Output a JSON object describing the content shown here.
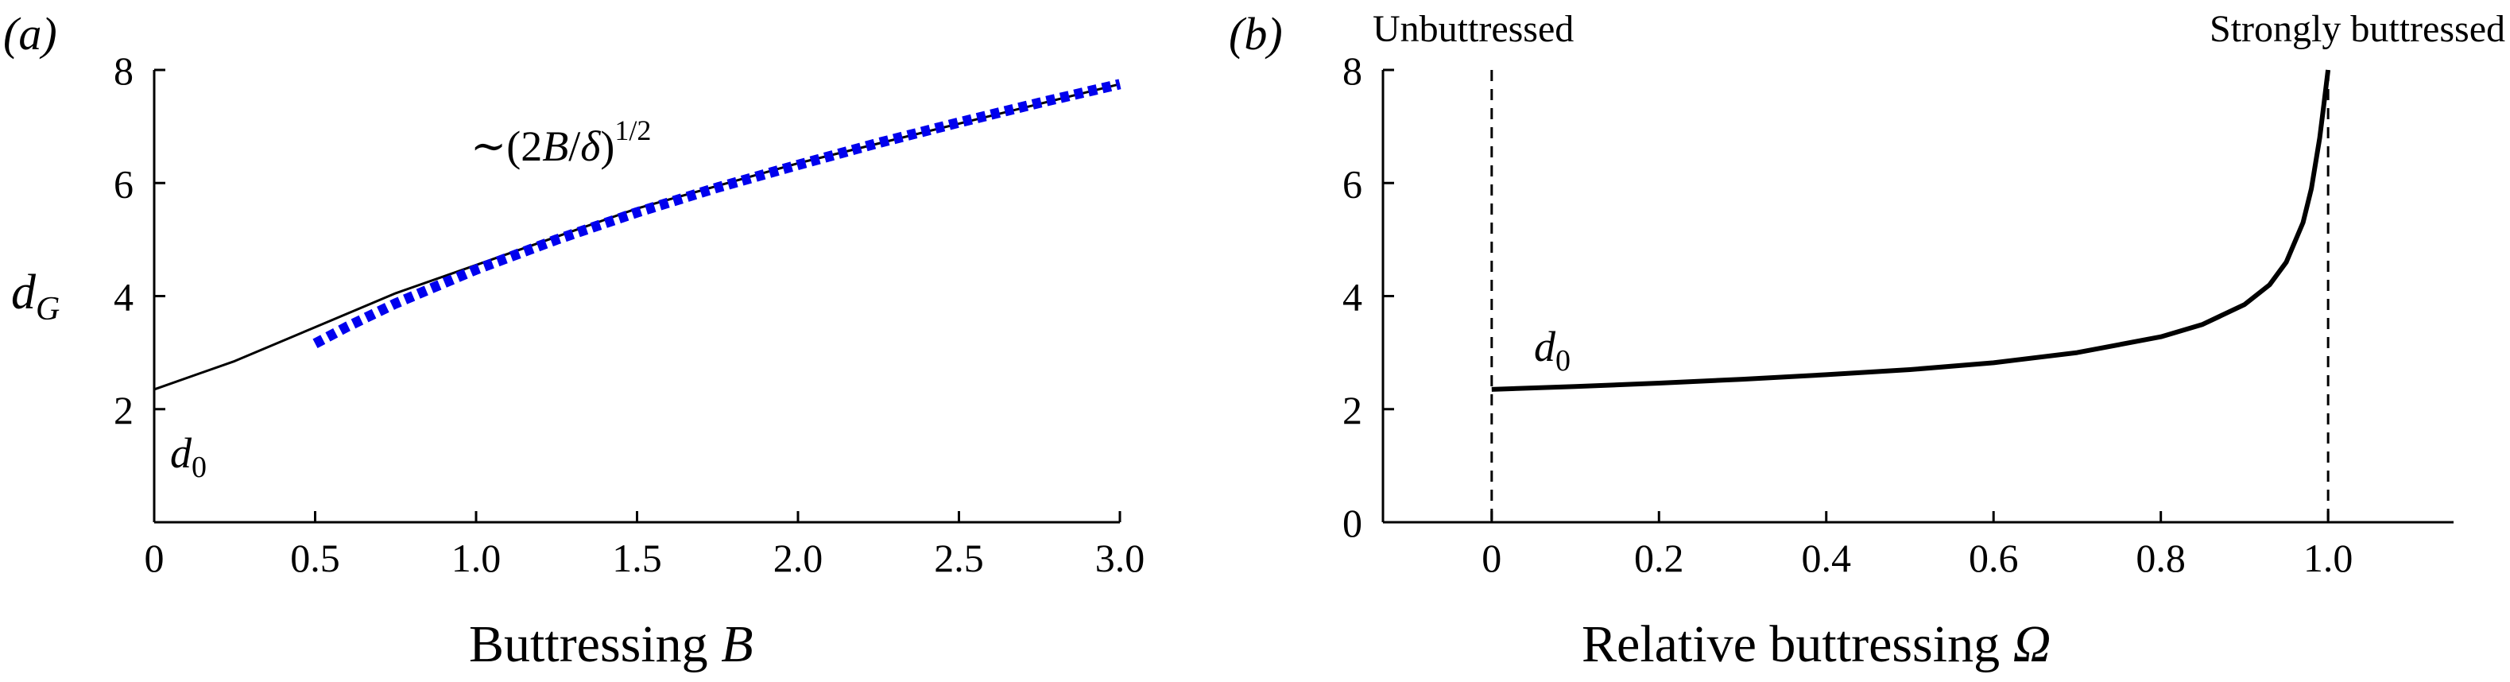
{
  "chart_data": [
    {
      "panel_label": "(a)",
      "type": "line",
      "xlabel": "Buttressing",
      "xlabel_symbol": "B",
      "ylabel": "d",
      "ylabel_subscript": "G",
      "xlim": [
        0,
        3.0
      ],
      "ylim": [
        0,
        8
      ],
      "x_ticks": [
        0,
        0.5,
        1.0,
        1.5,
        2.0,
        2.5,
        3.0
      ],
      "x_tick_labels": [
        "0",
        "0.5",
        "1.0",
        "1.5",
        "2.0",
        "2.5",
        "3.0"
      ],
      "y_ticks": [
        2,
        4,
        6,
        8
      ],
      "y_tick_labels": [
        "2",
        "4",
        "6",
        "8"
      ],
      "grid": false,
      "annotations": {
        "d0": {
          "base": "d",
          "sub": "0"
        },
        "asymptote": {
          "prefix": "∼(2",
          "var": "B",
          "slash": "/",
          "greek": "δ",
          "close": ")",
          "exponent": "1/2"
        }
      },
      "series": [
        {
          "style": "solid",
          "color": "#000000",
          "x": [
            0,
            0.25,
            0.5,
            0.75,
            1.0,
            1.25,
            1.5,
            1.75,
            2.0,
            2.25,
            2.5,
            2.75,
            3.0
          ],
          "y": [
            2.35,
            2.85,
            3.45,
            4.05,
            4.55,
            5.05,
            5.55,
            5.95,
            6.35,
            6.7,
            7.05,
            7.4,
            7.75
          ]
        },
        {
          "style": "dotted",
          "color": "#0000ee",
          "x": [
            0.5,
            0.6,
            0.75,
            1.0,
            1.25,
            1.5,
            1.75,
            2.0,
            2.25,
            2.5,
            2.75,
            3.0
          ],
          "y": [
            3.16,
            3.46,
            3.87,
            4.47,
            5.0,
            5.48,
            5.92,
            6.32,
            6.71,
            7.07,
            7.42,
            7.75
          ]
        }
      ]
    },
    {
      "panel_label": "(b)",
      "type": "line",
      "xlabel": "Relative buttressing",
      "xlabel_symbol": "Ω",
      "xlim": [
        -0.13,
        1.15
      ],
      "ylim": [
        0,
        8
      ],
      "x_ticks": [
        0,
        0.2,
        0.4,
        0.6,
        0.8,
        1.0
      ],
      "x_tick_labels": [
        "0",
        "0.2",
        "0.4",
        "0.6",
        "0.8",
        "1.0"
      ],
      "y_ticks": [
        0,
        2,
        4,
        6,
        8
      ],
      "y_tick_labels": [
        "0",
        "2",
        "4",
        "6",
        "8"
      ],
      "grid": false,
      "annotations": {
        "left_header": "Unbuttressed",
        "right_header": "Strongly buttressed",
        "d0": {
          "base": "d",
          "sub": "0"
        }
      },
      "reference_lines": [
        {
          "orientation": "vertical",
          "x": 0,
          "style": "dashed"
        },
        {
          "orientation": "vertical",
          "x": 1.0,
          "style": "dashed"
        }
      ],
      "series": [
        {
          "style": "solid",
          "color": "#000000",
          "x": [
            0,
            0.1,
            0.2,
            0.3,
            0.4,
            0.5,
            0.6,
            0.7,
            0.8,
            0.85,
            0.9,
            0.93,
            0.95,
            0.97,
            0.98,
            0.99,
            0.995,
            1.0
          ],
          "y": [
            2.35,
            2.4,
            2.46,
            2.53,
            2.61,
            2.7,
            2.82,
            3.0,
            3.28,
            3.5,
            3.85,
            4.2,
            4.6,
            5.3,
            5.9,
            6.8,
            7.4,
            8.0
          ]
        }
      ]
    }
  ]
}
